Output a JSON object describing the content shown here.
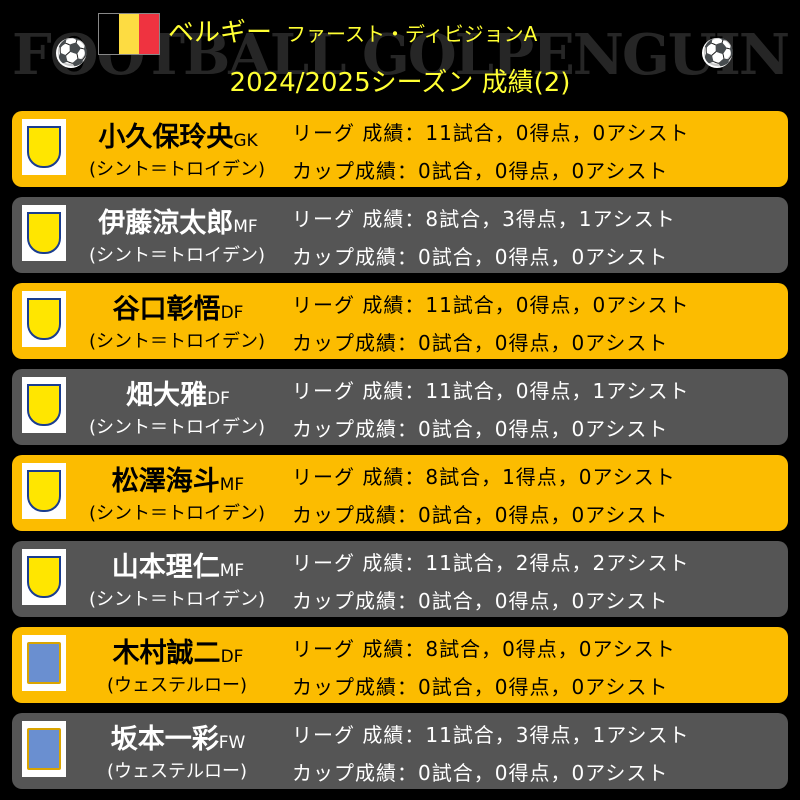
{
  "header": {
    "watermark": "FOOTBALL GOLPENGUIN",
    "country": "ベルギー",
    "league": "ファースト・ディビジョンA",
    "subtitle": "2024/2025シーズン 成績(2)",
    "flag_colors": [
      "#000000",
      "#fddc42",
      "#ef3340"
    ]
  },
  "colors": {
    "yellow_row": "#fcbc00",
    "gray_row": "#555555",
    "title": "#ffff33"
  },
  "players": [
    {
      "name": "小久保玲央",
      "pos": "GK",
      "club": "(シント＝トロイデン)",
      "league": "リーグ 成績：11試合，0得点，0アシスト",
      "cup": "カップ成績：0試合，0得点，0アシスト"
    },
    {
      "name": "伊藤涼太郎",
      "pos": "MF",
      "club": "(シント＝トロイデン)",
      "league": "リーグ 成績：8試合，3得点，1アシスト",
      "cup": "カップ成績：0試合，0得点，0アシスト"
    },
    {
      "name": "谷口彰悟",
      "pos": "DF",
      "club": "(シント＝トロイデン)",
      "league": "リーグ 成績：11試合，0得点，0アシスト",
      "cup": "カップ成績：0試合，0得点，0アシスト"
    },
    {
      "name": "畑大雅",
      "pos": "DF",
      "club": "(シント＝トロイデン)",
      "league": "リーグ 成績：11試合，0得点，1アシスト",
      "cup": "カップ成績：0試合，0得点，0アシスト"
    },
    {
      "name": "松澤海斗",
      "pos": "MF",
      "club": "(シント＝トロイデン)",
      "league": "リーグ 成績：8試合，1得点，0アシスト",
      "cup": "カップ成績：0試合，0得点，0アシスト"
    },
    {
      "name": "山本理仁",
      "pos": "MF",
      "club": "(シント＝トロイデン)",
      "league": "リーグ 成績：11試合，2得点，2アシスト",
      "cup": "カップ成績：0試合，0得点，0アシスト"
    },
    {
      "name": "木村誠二",
      "pos": "DF",
      "club": "(ウェステルロー)",
      "league": "リーグ 成績：8試合，0得点，0アシスト",
      "cup": "カップ成績：0試合，0得点，0アシスト"
    },
    {
      "name": "坂本一彩",
      "pos": "FW",
      "club": "(ウェステルロー)",
      "league": "リーグ 成績：11試合，3得点，1アシスト",
      "cup": "カップ成績：0試合，0得点，0アシスト"
    }
  ]
}
